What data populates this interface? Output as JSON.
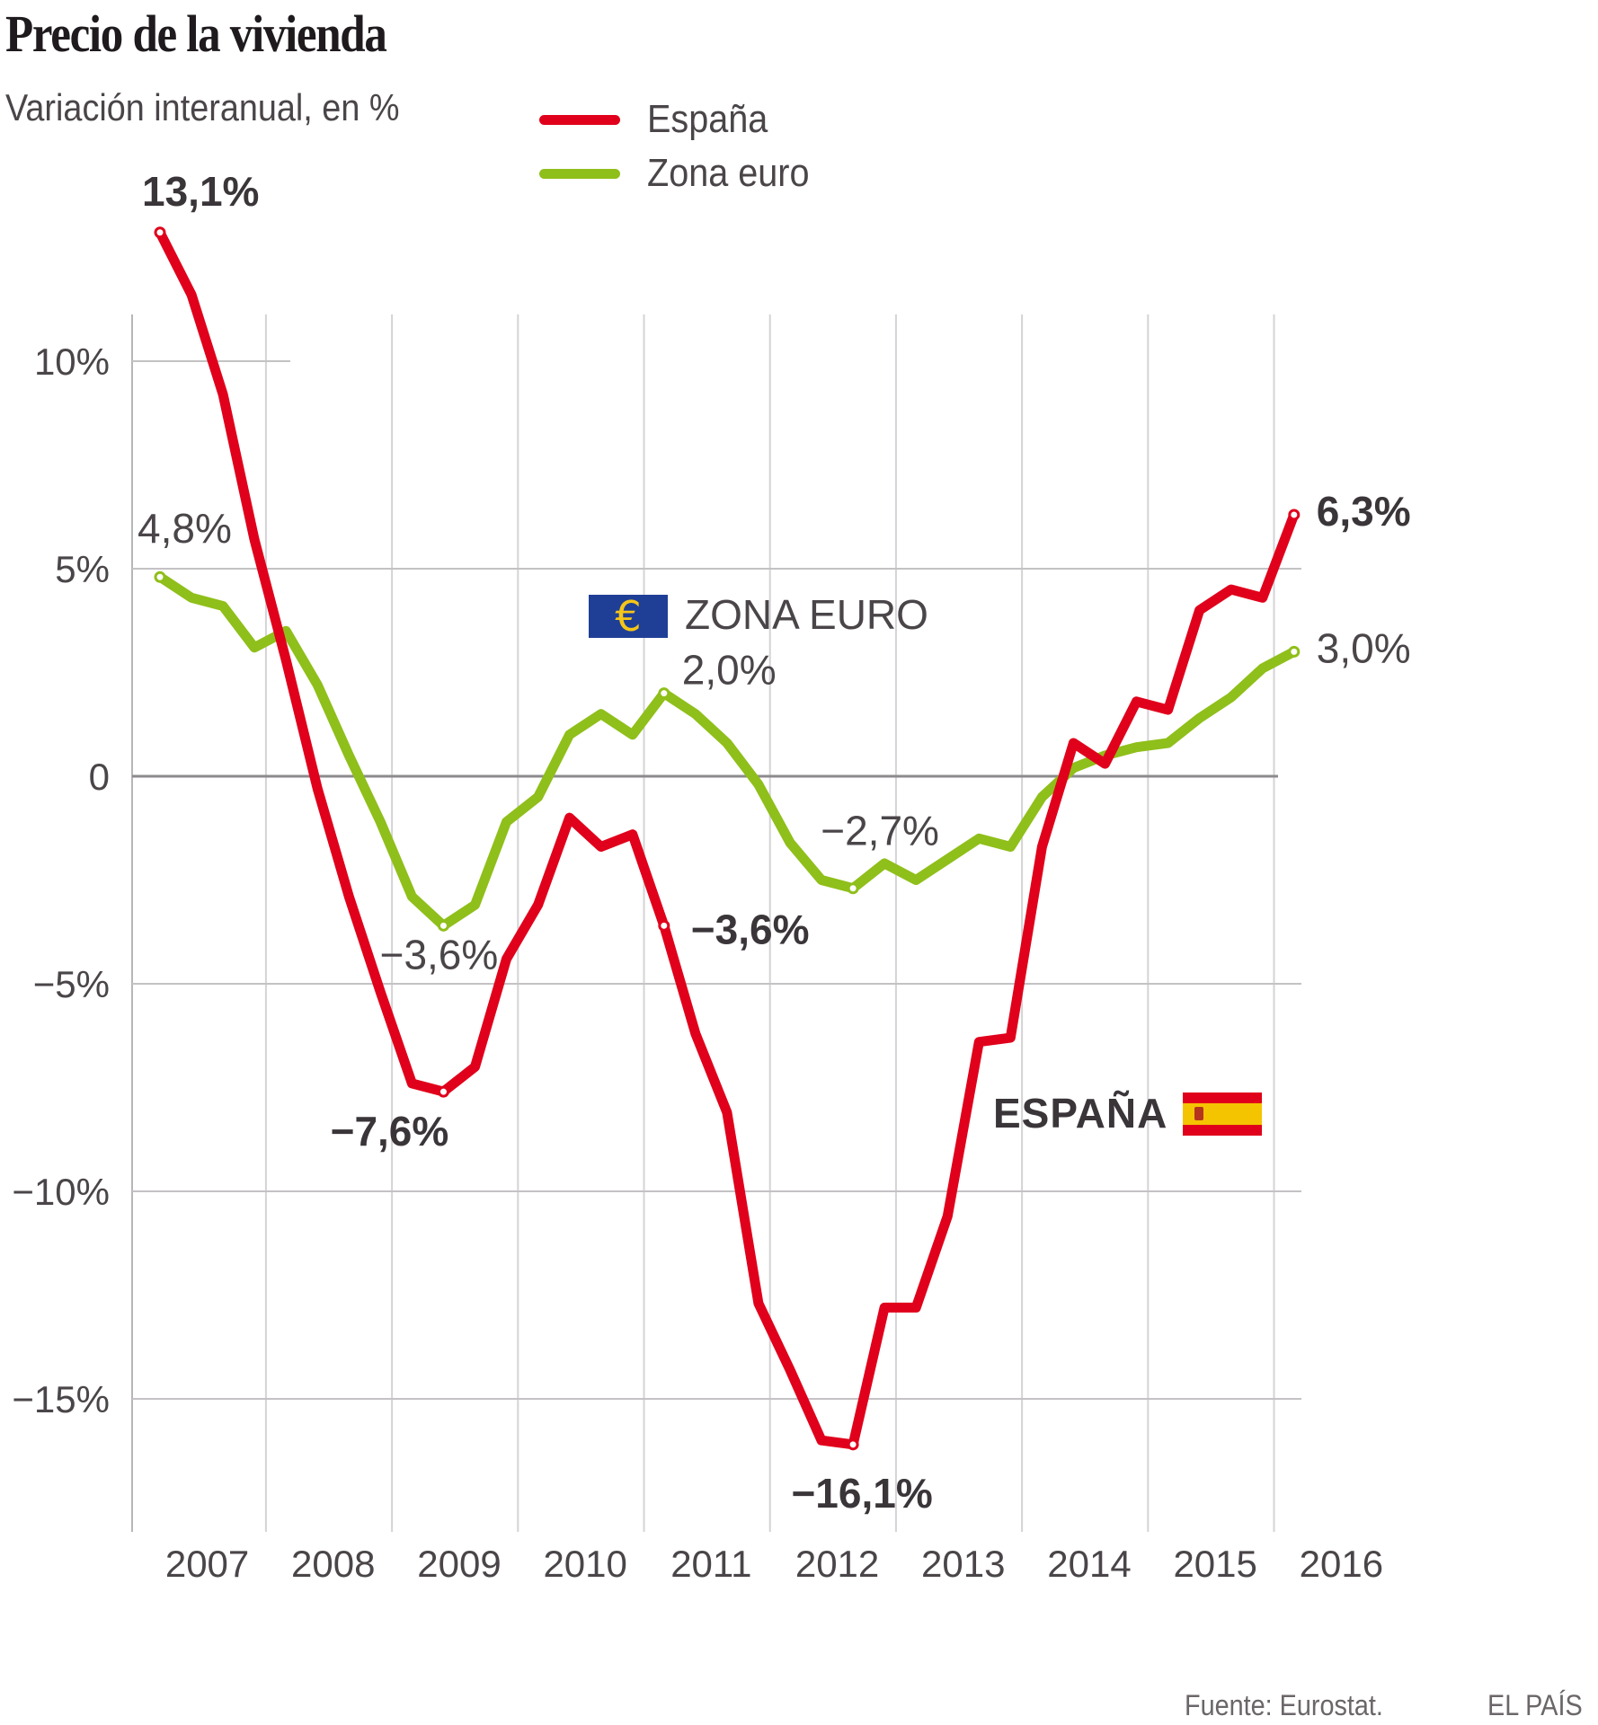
{
  "header": {
    "title": "Precio de la vivienda",
    "subtitle": "Variación interanual, en %"
  },
  "legend": [
    {
      "label": "España",
      "color": "#e0001b"
    },
    {
      "label": "Zona euro",
      "color": "#8fbf1a"
    }
  ],
  "footer": {
    "source": "Fuente: Eurostat.",
    "brand": "EL PAÍS"
  },
  "chart_data": {
    "type": "line",
    "title": "Precio de la vivienda",
    "subtitle": "Variación interanual, en %",
    "xlabel": "",
    "ylabel": "",
    "x_frequency": "quarterly",
    "x_start": "2007-Q1",
    "x_end": "2016-Q1",
    "x_tick_labels": [
      "2007",
      "2008",
      "2009",
      "2010",
      "2011",
      "2012",
      "2013",
      "2014",
      "2015",
      "2016"
    ],
    "y_ticks": [
      10,
      5,
      0,
      -5,
      -10,
      -15
    ],
    "y_tick_labels": [
      "10%",
      "5%",
      "0",
      "−5%",
      "−10%",
      "−15%"
    ],
    "ylim": [
      -18,
      14
    ],
    "grid": true,
    "legend_position": "top-center",
    "series": [
      {
        "name": "España",
        "color": "#e0001b",
        "values": [
          13.1,
          11.6,
          9.2,
          5.7,
          2.8,
          -0.3,
          -2.9,
          -5.2,
          -7.4,
          -7.6,
          -7.0,
          -4.4,
          -3.1,
          -1.0,
          -1.7,
          -1.4,
          -3.6,
          -6.2,
          -8.1,
          -12.7,
          -14.3,
          -16.0,
          -16.1,
          -12.8,
          -12.8,
          -10.6,
          -6.4,
          -6.3,
          -1.7,
          0.8,
          0.3,
          1.8,
          1.6,
          4.0,
          4.5,
          4.3,
          6.3
        ]
      },
      {
        "name": "Zona euro",
        "color": "#8fbf1a",
        "values": [
          4.8,
          4.3,
          4.1,
          3.1,
          3.5,
          2.2,
          0.5,
          -1.1,
          -2.9,
          -3.6,
          -3.1,
          -1.1,
          -0.5,
          1.0,
          1.5,
          1.0,
          2.0,
          1.5,
          0.8,
          -0.2,
          -1.6,
          -2.5,
          -2.7,
          -2.1,
          -2.5,
          -2.0,
          -1.5,
          -1.7,
          -0.5,
          0.2,
          0.5,
          0.7,
          0.8,
          1.4,
          1.9,
          2.6,
          3.0
        ]
      }
    ],
    "annotations": [
      {
        "series": "España",
        "index": 0,
        "text": "13,1%",
        "bold": true
      },
      {
        "series": "España",
        "index": 9,
        "text": "−7,6%",
        "bold": true
      },
      {
        "series": "España",
        "index": 16,
        "text": "−3,6%",
        "bold": true
      },
      {
        "series": "España",
        "index": 22,
        "text": "−16,1%",
        "bold": true
      },
      {
        "series": "España",
        "index": 36,
        "text": "6,3%",
        "bold": true
      },
      {
        "series": "Zona euro",
        "index": 0,
        "text": "4,8%",
        "bold": false
      },
      {
        "series": "Zona euro",
        "index": 9,
        "text": "−3,6%",
        "bold": false
      },
      {
        "series": "Zona euro",
        "index": 16,
        "text": "2,0%",
        "bold": false
      },
      {
        "series": "Zona euro",
        "index": 22,
        "text": "−2,7%",
        "bold": false
      },
      {
        "series": "Zona euro",
        "index": 36,
        "text": "3,0%",
        "bold": false
      }
    ],
    "series_tags": [
      {
        "text": "ZONA EURO",
        "icon": "euro-flag-icon"
      },
      {
        "text": "ESPAÑA",
        "icon": "spain-flag-icon"
      }
    ]
  }
}
